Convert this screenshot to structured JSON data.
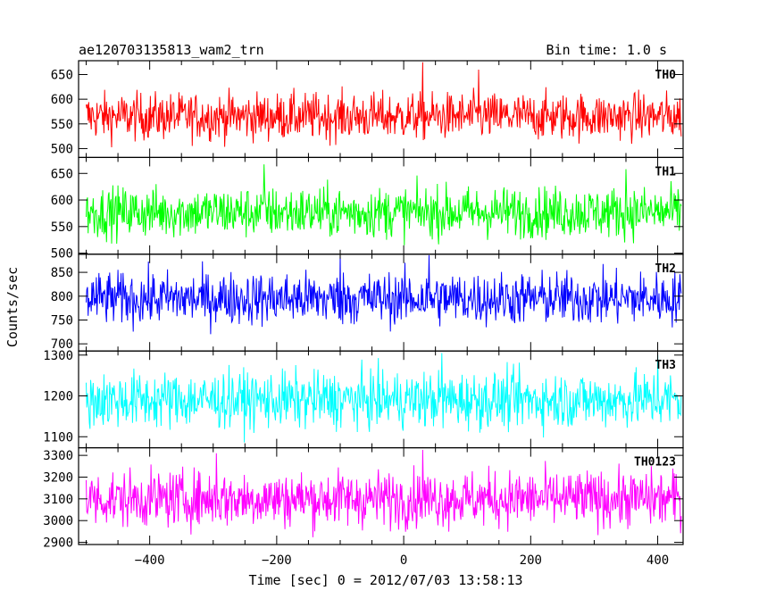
{
  "chart_data": {
    "type": "line",
    "title": "ae120703135813_wam2_trn",
    "bin_time": "Bin time: 1.0 s",
    "xlabel": "Time [sec] 0 = 2012/07/03 13:58:13",
    "ylabel": "Counts/sec",
    "xlim": [
      -512,
      440
    ],
    "xticks": [
      -400,
      -200,
      0,
      200,
      400
    ],
    "x_data_range": [
      -500,
      437
    ],
    "grid": false,
    "panels": [
      {
        "name": "TH0",
        "color": "#ff0000",
        "ylim": [
          482,
          678
        ],
        "yticks": [
          500,
          550,
          600,
          650
        ],
        "mean": 565,
        "noise": 24,
        "peaks": [
          {
            "x": 30,
            "y": 675
          },
          {
            "x": 118,
            "y": 660
          }
        ]
      },
      {
        "name": "TH1",
        "color": "#00ff00",
        "ylim": [
          498,
          680
        ],
        "yticks": [
          500,
          550,
          600,
          650
        ],
        "mean": 577,
        "noise": 24,
        "peaks": [
          {
            "x": -220,
            "y": 667
          },
          {
            "x": 350,
            "y": 658
          }
        ]
      },
      {
        "name": "TH2",
        "color": "#0000ff",
        "ylim": [
          685,
          888
        ],
        "yticks": [
          700,
          750,
          800,
          850
        ],
        "mean": 795,
        "noise": 28,
        "peaks": [
          {
            "x": -100,
            "y": 888
          },
          {
            "x": 40,
            "y": 886
          }
        ]
      },
      {
        "name": "TH3",
        "color": "#00ffff",
        "ylim": [
          1073,
          1310
        ],
        "yticks": [
          1100,
          1200,
          1300
        ],
        "mean": 1190,
        "noise": 35,
        "peaks": [
          {
            "x": 60,
            "y": 1305
          },
          {
            "x": 400,
            "y": 1300
          }
        ]
      },
      {
        "name": "TH0123",
        "color": "#ff00ff",
        "ylim": [
          2890,
          3335
        ],
        "yticks": [
          2900,
          3000,
          3100,
          3200,
          3300
        ],
        "mean": 3100,
        "noise": 65,
        "peaks": [
          {
            "x": 30,
            "y": 3325
          },
          {
            "x": -295,
            "y": 3310
          }
        ]
      }
    ]
  }
}
